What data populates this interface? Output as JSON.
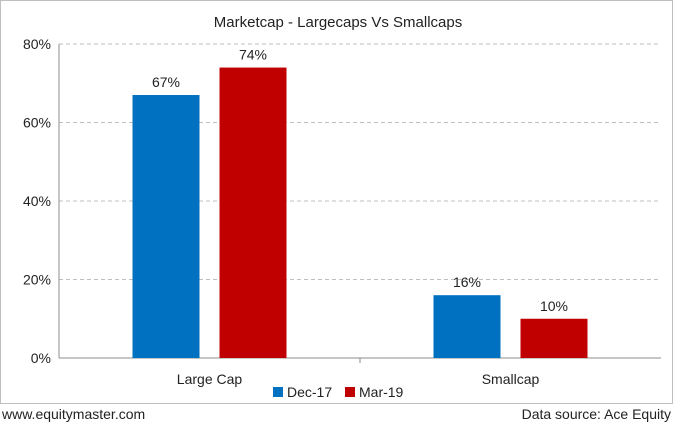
{
  "chart_data": {
    "type": "bar",
    "title": "Marketcap  - Largecaps Vs Smallcaps",
    "categories": [
      "Large Cap",
      "Smallcap"
    ],
    "series": [
      {
        "name": "Dec-17",
        "values": [
          67,
          16
        ],
        "labels": [
          "67%",
          "16%"
        ],
        "color": "#0070c0"
      },
      {
        "name": "Mar-19",
        "values": [
          74,
          10
        ],
        "labels": [
          "74%",
          "10%"
        ],
        "color": "#c00000"
      }
    ],
    "ylim": [
      0,
      80
    ],
    "yticks": [
      0,
      20,
      40,
      60,
      80
    ],
    "ytick_labels": [
      "0%",
      "20%",
      "40%",
      "60%",
      "80%"
    ],
    "grid": true,
    "legend_position": "bottom"
  },
  "footer": {
    "left": "www.equitymaster.com",
    "right": "Data source: Ace Equity"
  }
}
